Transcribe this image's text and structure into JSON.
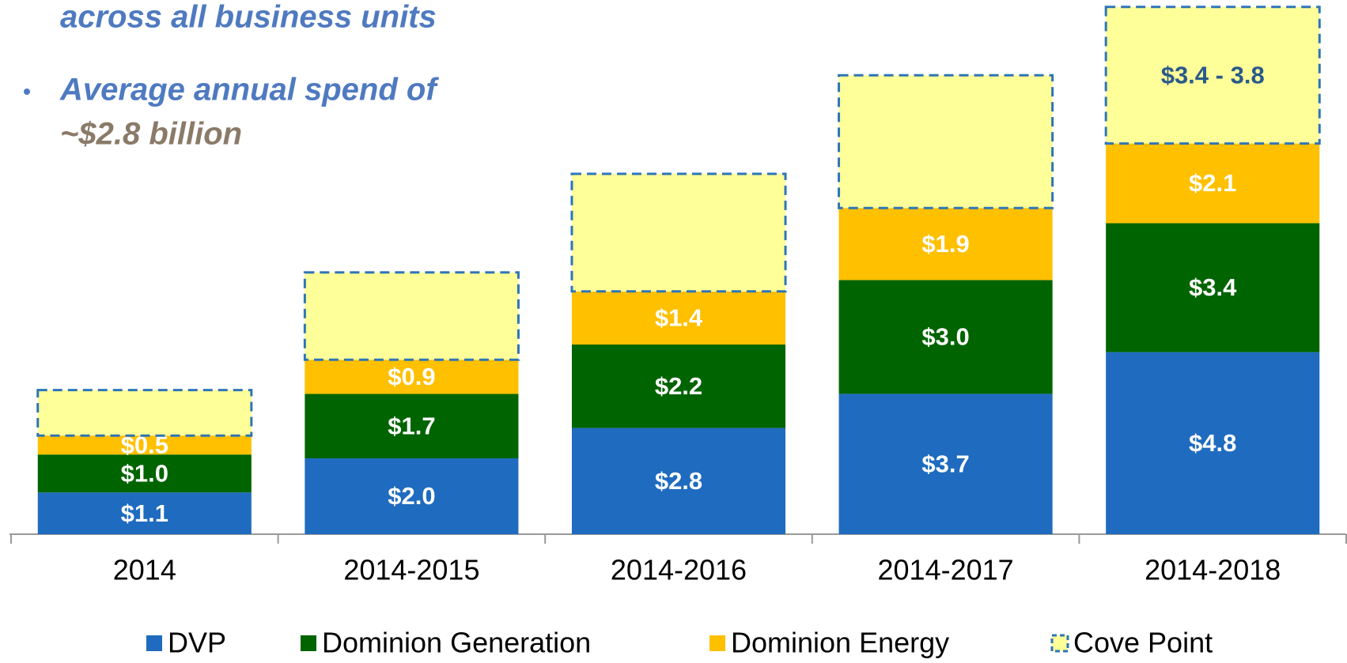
{
  "chart_data": {
    "type": "stacked_bar",
    "annotations": [
      "across all business units",
      "Average annual spend of",
      "~$2.8 billion"
    ],
    "categories": [
      "2014",
      "2014-2015",
      "2014-2016",
      "2014-2017",
      "2014-2018"
    ],
    "series": [
      {
        "name": "DVP",
        "color": "#1f6bbf",
        "values": [
          1.1,
          2.0,
          2.8,
          3.7,
          4.8
        ],
        "value_labels": [
          "$1.1",
          "$2.0",
          "$2.8",
          "$3.7",
          "$4.8"
        ]
      },
      {
        "name": "Dominion Generation",
        "color": "#006400",
        "values": [
          1.0,
          1.7,
          2.2,
          3.0,
          3.4
        ],
        "value_labels": [
          "$1.0",
          "$1.7",
          "$2.2",
          "$3.0",
          "$3.4"
        ]
      },
      {
        "name": "Dominion Energy",
        "color": "#ffc000",
        "values": [
          0.5,
          0.9,
          1.4,
          1.9,
          2.1
        ],
        "value_labels": [
          "$0.5",
          "$0.9",
          "$1.4",
          "$1.9",
          "$2.1"
        ]
      },
      {
        "name": "Cove Point",
        "color": "#ffff99",
        "values": [
          1.2,
          2.3,
          3.1,
          3.5,
          3.6
        ],
        "value_labels": [
          null,
          null,
          null,
          null,
          "$3.4 - 3.8"
        ]
      }
    ],
    "ylim": [
      0,
      14
    ]
  }
}
